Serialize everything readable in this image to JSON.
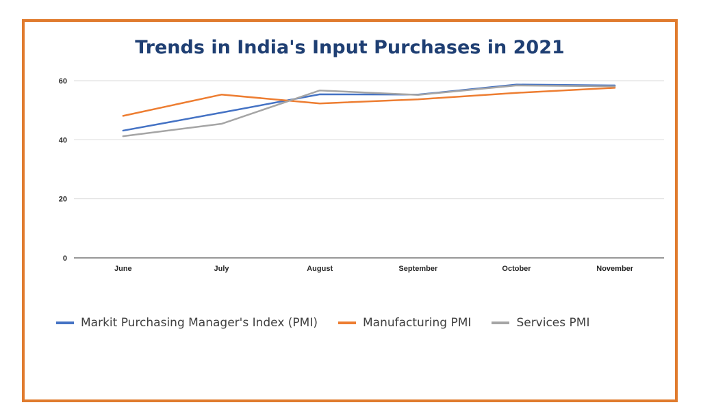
{
  "chart_data": {
    "type": "line",
    "title": "Trends in India's Input Purchases in 2021",
    "categories": [
      "June",
      "July",
      "August",
      "September",
      "October",
      "November"
    ],
    "ylim": [
      0,
      60
    ],
    "yticks": [
      0,
      20,
      40,
      60
    ],
    "grid": true,
    "legend_position": "bottom",
    "series": [
      {
        "name": "Markit Purchasing Manager's Index (PMI)",
        "color": "#4472c4",
        "values": [
          43.1,
          49.2,
          55.4,
          55.3,
          58.7,
          58.4
        ]
      },
      {
        "name": "Manufacturing PMI",
        "color": "#ed7d31",
        "values": [
          48.1,
          55.3,
          52.3,
          53.7,
          55.9,
          57.6
        ]
      },
      {
        "name": "Services PMI",
        "color": "#a5a5a5",
        "values": [
          41.2,
          45.4,
          56.7,
          55.2,
          58.4,
          58.1
        ]
      }
    ]
  }
}
